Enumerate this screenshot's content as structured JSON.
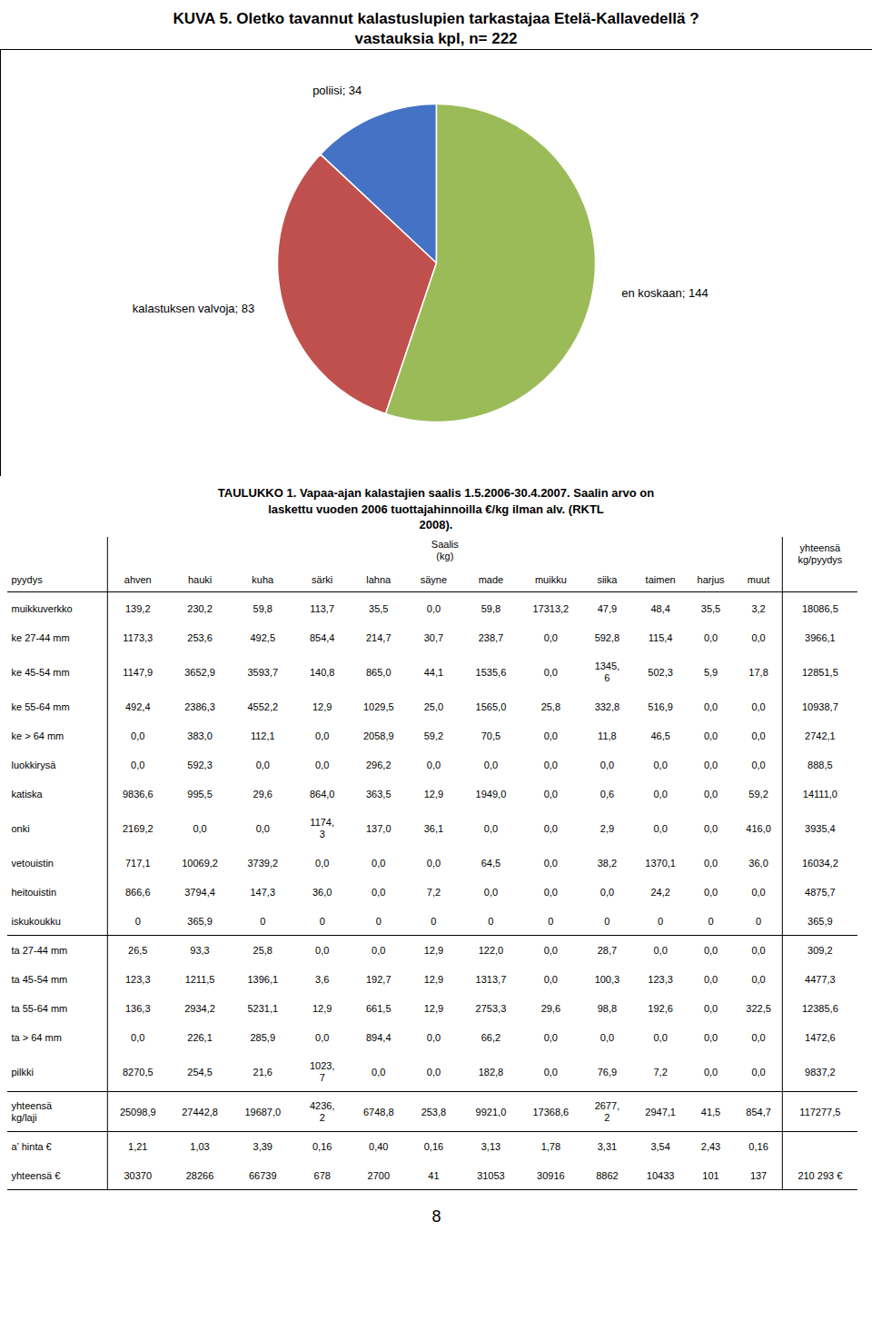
{
  "chart_data": [
    {
      "type": "pie",
      "title": "KUVA 5. Oletko tavannut kalastuslupien tarkastajaa Etelä-Kallavedellä ?",
      "subtitle": "vastauksia kpl, n= 222",
      "categories": [
        "poliisi; 34",
        "kalastuksen valvoja; 83",
        "en koskaan; 144"
      ],
      "values": [
        34,
        83,
        144
      ],
      "colors": [
        "#4472C4",
        "#C0504D",
        "#9BBB59"
      ]
    },
    {
      "type": "table",
      "title": "TAULUKKO 1. Vapaa-ajan kalastajien saalis 1.5.2006-30.4.2007. Saalin arvo on\nlaskettu vuoden 2006 tuottajahinnoilla €/kg ilman alv. (RKTL\n2008).",
      "header_note": "Saalis\n(kg)",
      "columns": [
        "pyydys",
        "ahven",
        "hauki",
        "kuha",
        "särki",
        "lahna",
        "säyne",
        "made",
        "muikku",
        "siika",
        "taimen",
        "harjus",
        "muut",
        "yhteensä\nkg/pyydys"
      ],
      "row_groups": [
        [
          [
            "muikkuverkko",
            "139,2",
            "230,2",
            "59,8",
            "113,7",
            "35,5",
            "0,0",
            "59,8",
            "17313,2",
            "47,9",
            "48,4",
            "35,5",
            "3,2",
            "18086,5"
          ],
          [
            "ke 27-44 mm",
            "1173,3",
            "253,6",
            "492,5",
            "854,4",
            "214,7",
            "30,7",
            "238,7",
            "0,0",
            "592,8",
            "115,4",
            "0,0",
            "0,0",
            "3966,1"
          ],
          [
            "ke 45-54 mm",
            "1147,9",
            "3652,9",
            "3593,7",
            "140,8",
            "865,0",
            "44,1",
            "1535,6",
            "0,0",
            "1345,\n6",
            "502,3",
            "5,9",
            "17,8",
            "12851,5"
          ],
          [
            "ke 55-64 mm",
            "492,4",
            "2386,3",
            "4552,2",
            "12,9",
            "1029,5",
            "25,0",
            "1565,0",
            "25,8",
            "332,8",
            "516,9",
            "0,0",
            "0,0",
            "10938,7"
          ],
          [
            "ke > 64 mm",
            "0,0",
            "383,0",
            "112,1",
            "0,0",
            "2058,9",
            "59,2",
            "70,5",
            "0,0",
            "11,8",
            "46,5",
            "0,0",
            "0,0",
            "2742,1"
          ],
          [
            "luokkirysä",
            "0,0",
            "592,3",
            "0,0",
            "0,0",
            "296,2",
            "0,0",
            "0,0",
            "0,0",
            "0,0",
            "0,0",
            "0,0",
            "0,0",
            "888,5"
          ],
          [
            "katiska",
            "9836,6",
            "995,5",
            "29,6",
            "864,0",
            "363,5",
            "12,9",
            "1949,0",
            "0,0",
            "0,6",
            "0,0",
            "0,0",
            "59,2",
            "14111,0"
          ],
          [
            "onki",
            "2169,2",
            "0,0",
            "0,0",
            "1174,\n3",
            "137,0",
            "36,1",
            "0,0",
            "0,0",
            "2,9",
            "0,0",
            "0,0",
            "416,0",
            "3935,4"
          ],
          [
            "vetouistin",
            "717,1",
            "10069,2",
            "3739,2",
            "0,0",
            "0,0",
            "0,0",
            "64,5",
            "0,0",
            "38,2",
            "1370,1",
            "0,0",
            "36,0",
            "16034,2"
          ],
          [
            "heitouistin",
            "866,6",
            "3794,4",
            "147,3",
            "36,0",
            "0,0",
            "7,2",
            "0,0",
            "0,0",
            "0,0",
            "24,2",
            "0,0",
            "0,0",
            "4875,7"
          ],
          [
            "iskukoukku",
            "0",
            "365,9",
            "0",
            "0",
            "0",
            "0",
            "0",
            "0",
            "0",
            "0",
            "0",
            "0",
            "365,9"
          ]
        ],
        [
          [
            "ta 27-44 mm",
            "26,5",
            "93,3",
            "25,8",
            "0,0",
            "0,0",
            "12,9",
            "122,0",
            "0,0",
            "28,7",
            "0,0",
            "0,0",
            "0,0",
            "309,2"
          ],
          [
            "ta 45-54 mm",
            "123,3",
            "1211,5",
            "1396,1",
            "3,6",
            "192,7",
            "12,9",
            "1313,7",
            "0,0",
            "100,3",
            "123,3",
            "0,0",
            "0,0",
            "4477,3"
          ],
          [
            "ta 55-64 mm",
            "136,3",
            "2934,2",
            "5231,1",
            "12,9",
            "661,5",
            "12,9",
            "2753,3",
            "29,6",
            "98,8",
            "192,6",
            "0,0",
            "322,5",
            "12385,6"
          ],
          [
            "ta > 64 mm",
            "0,0",
            "226,1",
            "285,9",
            "0,0",
            "894,4",
            "0,0",
            "66,2",
            "0,0",
            "0,0",
            "0,0",
            "0,0",
            "0,0",
            "1472,6"
          ],
          [
            "pilkki",
            "8270,5",
            "254,5",
            "21,6",
            "1023,\n7",
            "0,0",
            "0,0",
            "182,8",
            "0,0",
            "76,9",
            "7,2",
            "0,0",
            "0,0",
            "9837,2"
          ]
        ],
        [
          [
            "yhteensä\nkg/laji",
            "25098,9",
            "27442,8",
            "19687,0",
            "4236,\n2",
            "6748,8",
            "253,8",
            "9921,0",
            "17368,6",
            "2677,\n2",
            "2947,1",
            "41,5",
            "854,7",
            "117277,5"
          ]
        ],
        [
          [
            "a’ hinta €",
            "1,21",
            "1,03",
            "3,39",
            "0,16",
            "0,40",
            "0,16",
            "3,13",
            "1,78",
            "3,31",
            "3,54",
            "2,43",
            "0,16",
            null
          ],
          [
            "yhteensä €",
            "30370",
            "28266",
            "66739",
            "678",
            "2700",
            "41",
            "31053",
            "30916",
            "8862",
            "10433",
            "101",
            "137",
            "210 293 €"
          ]
        ]
      ],
      "page": "8"
    }
  ]
}
